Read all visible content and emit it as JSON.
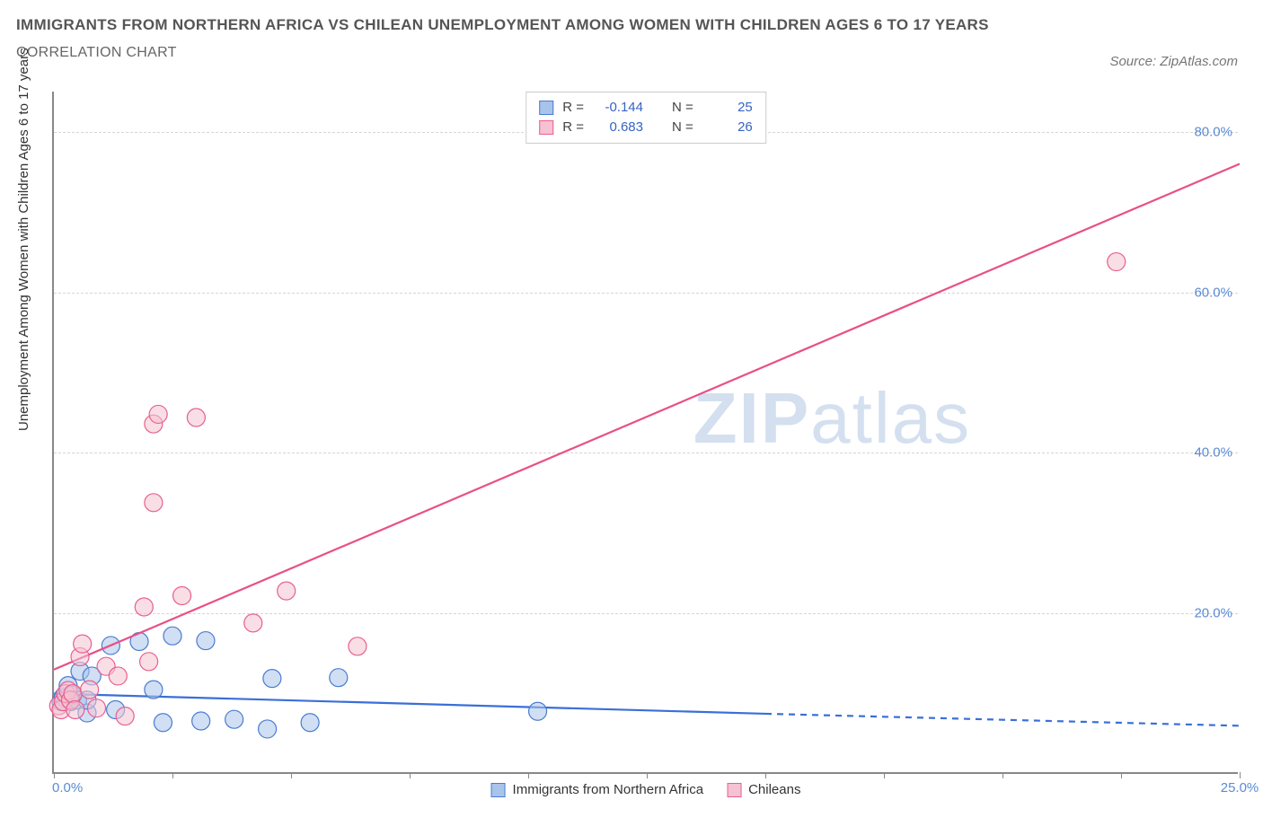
{
  "title": "IMMIGRANTS FROM NORTHERN AFRICA VS CHILEAN UNEMPLOYMENT AMONG WOMEN WITH CHILDREN AGES 6 TO 17 YEARS",
  "subtitle": "CORRELATION CHART",
  "source": "Source: ZipAtlas.com",
  "watermark_a": "ZIP",
  "watermark_b": "atlas",
  "chart": {
    "type": "scatter",
    "background_color": "#ffffff",
    "grid_color": "#d5d5d5",
    "axis_color": "#888888",
    "xlim": [
      0,
      25
    ],
    "ylim": [
      0,
      85
    ],
    "x_ticks": [
      0,
      2.5,
      5,
      7.5,
      10,
      12.5,
      15,
      17.5,
      20,
      22.5,
      25
    ],
    "x_tick_labels": {
      "first": "0.0%",
      "last": "25.0%"
    },
    "y_gridlines": [
      20,
      40,
      60,
      80
    ],
    "y_tick_labels": [
      "20.0%",
      "40.0%",
      "60.0%",
      "80.0%"
    ],
    "y_axis_label": "Unemployment Among Women with Children Ages 6 to 17 years",
    "marker_radius": 10,
    "marker_stroke_width": 1.2,
    "marker_fill_opacity": 0.55,
    "line_width": 2.2,
    "series": [
      {
        "name": "Immigrants from Northern Africa",
        "color_fill": "#a9c4ea",
        "color_stroke": "#4a7bd0",
        "line_color": "#3a6fd8",
        "r_label": "R =",
        "r_value": "-0.144",
        "n_label": "N =",
        "n_value": "25",
        "trend": {
          "x1": 0,
          "y1": 10.0,
          "x2": 15,
          "y2": 7.5,
          "dash_x2": 25,
          "dash_y2": 6.0
        },
        "points": [
          {
            "x": 0.15,
            "y": 9.0
          },
          {
            "x": 0.2,
            "y": 9.6
          },
          {
            "x": 0.25,
            "y": 9.4
          },
          {
            "x": 0.3,
            "y": 11.0
          },
          {
            "x": 0.35,
            "y": 9.0
          },
          {
            "x": 0.4,
            "y": 9.8
          },
          {
            "x": 0.5,
            "y": 9.2
          },
          {
            "x": 0.55,
            "y": 12.8
          },
          {
            "x": 0.7,
            "y": 7.6
          },
          {
            "x": 0.7,
            "y": 9.2
          },
          {
            "x": 0.8,
            "y": 12.2
          },
          {
            "x": 1.2,
            "y": 16.0
          },
          {
            "x": 1.3,
            "y": 8.0
          },
          {
            "x": 1.8,
            "y": 16.5
          },
          {
            "x": 2.1,
            "y": 10.5
          },
          {
            "x": 2.3,
            "y": 6.4
          },
          {
            "x": 2.5,
            "y": 17.2
          },
          {
            "x": 3.1,
            "y": 6.6
          },
          {
            "x": 3.2,
            "y": 16.6
          },
          {
            "x": 3.8,
            "y": 6.8
          },
          {
            "x": 4.5,
            "y": 5.6
          },
          {
            "x": 4.6,
            "y": 11.9
          },
          {
            "x": 5.4,
            "y": 6.4
          },
          {
            "x": 6.0,
            "y": 12.0
          },
          {
            "x": 10.2,
            "y": 7.8
          }
        ]
      },
      {
        "name": "Chileans",
        "color_fill": "#f4c2d1",
        "color_stroke": "#e85f8f",
        "line_color": "#e94f87",
        "r_label": "R =",
        "r_value": "0.683",
        "n_label": "N =",
        "n_value": "26",
        "trend": {
          "x1": 0,
          "y1": 13.0,
          "x2": 25,
          "y2": 76.0
        },
        "points": [
          {
            "x": 0.1,
            "y": 8.5
          },
          {
            "x": 0.15,
            "y": 8.0
          },
          {
            "x": 0.2,
            "y": 9.0
          },
          {
            "x": 0.25,
            "y": 10.0
          },
          {
            "x": 0.3,
            "y": 10.4
          },
          {
            "x": 0.35,
            "y": 9.2
          },
          {
            "x": 0.4,
            "y": 10.0
          },
          {
            "x": 0.45,
            "y": 8.0
          },
          {
            "x": 0.55,
            "y": 14.6
          },
          {
            "x": 0.6,
            "y": 16.2
          },
          {
            "x": 0.75,
            "y": 10.5
          },
          {
            "x": 0.9,
            "y": 8.2
          },
          {
            "x": 1.1,
            "y": 13.4
          },
          {
            "x": 1.35,
            "y": 12.2
          },
          {
            "x": 1.5,
            "y": 7.2
          },
          {
            "x": 1.9,
            "y": 20.8
          },
          {
            "x": 2.0,
            "y": 14.0
          },
          {
            "x": 2.1,
            "y": 33.8
          },
          {
            "x": 2.1,
            "y": 43.6
          },
          {
            "x": 2.2,
            "y": 44.8
          },
          {
            "x": 2.7,
            "y": 22.2
          },
          {
            "x": 3.0,
            "y": 44.4
          },
          {
            "x": 4.2,
            "y": 18.8
          },
          {
            "x": 4.9,
            "y": 22.8
          },
          {
            "x": 6.4,
            "y": 15.9
          },
          {
            "x": 22.4,
            "y": 63.8
          }
        ]
      }
    ]
  }
}
